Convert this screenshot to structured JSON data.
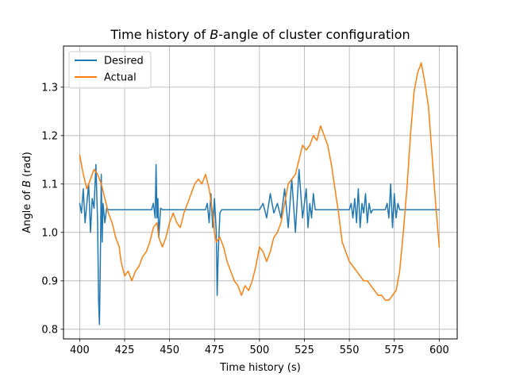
{
  "chart_data": {
    "type": "line",
    "title_prefix": "Time history of ",
    "title_symbol": "B",
    "title_suffix": "-angle of cluster configuration",
    "xlabel": "Time history (s)",
    "ylabel_prefix": "Angle of ",
    "ylabel_symbol": "B",
    "ylabel_suffix": " (rad)",
    "xlim": [
      391,
      610
    ],
    "ylim": [
      0.78,
      1.385
    ],
    "xticks": [
      400,
      425,
      450,
      475,
      500,
      525,
      550,
      575,
      600
    ],
    "yticks": [
      0.8,
      0.9,
      1.0,
      1.1,
      1.2,
      1.3
    ],
    "ytick_labels": [
      "0.8",
      "0.9",
      "1.0",
      "1.1",
      "1.2",
      "1.3"
    ],
    "grid": true,
    "legend_position": "upper-left",
    "series": [
      {
        "name": "Desired",
        "color": "#1f77b4",
        "constant_value": 1.047,
        "x": [
          400,
          401,
          402,
          403,
          404,
          405,
          406,
          407,
          408,
          409,
          410,
          410.5,
          411,
          411.5,
          412,
          412.5,
          413,
          414,
          415,
          416,
          440,
          441,
          442,
          442.5,
          443,
          443.5,
          444,
          445,
          446,
          470,
          471,
          472,
          473,
          474,
          475,
          476,
          476.5,
          477,
          478,
          479,
          500,
          502,
          504,
          506,
          508,
          510,
          512,
          514,
          516,
          518,
          520,
          522,
          524,
          526,
          527,
          528,
          529,
          530,
          531,
          550,
          551,
          552,
          553,
          554,
          555,
          556,
          557,
          558,
          559,
          560,
          561,
          562,
          563,
          570,
          571,
          572,
          573,
          574,
          575,
          576,
          577,
          578,
          600
        ],
        "y": [
          1.06,
          1.04,
          1.09,
          1.02,
          1.06,
          1.1,
          1.0,
          1.07,
          1.05,
          1.14,
          1.02,
          0.86,
          0.81,
          0.94,
          1.12,
          0.98,
          1.06,
          1.02,
          1.05,
          1.047,
          1.047,
          1.06,
          1.03,
          1.14,
          1.03,
          1.07,
          0.99,
          1.05,
          1.047,
          1.047,
          1.06,
          1.02,
          1.08,
          1.01,
          1.07,
          1.0,
          0.87,
          0.95,
          1.04,
          1.047,
          1.047,
          1.06,
          1.03,
          1.08,
          1.04,
          1.06,
          1.03,
          1.09,
          1.01,
          1.11,
          1.0,
          1.13,
          1.03,
          1.09,
          1.01,
          1.06,
          1.03,
          1.08,
          1.047,
          1.047,
          1.06,
          1.03,
          1.07,
          1.02,
          1.09,
          1.01,
          1.06,
          1.04,
          1.08,
          1.02,
          1.06,
          1.04,
          1.047,
          1.047,
          1.06,
          1.03,
          1.1,
          1.01,
          1.08,
          1.03,
          1.06,
          1.047,
          1.047
        ]
      },
      {
        "name": "Actual",
        "color": "#ff7f0e",
        "x": [
          400,
          402,
          404,
          406,
          408,
          410,
          412,
          414,
          416,
          418,
          420,
          422,
          423,
          425,
          427,
          429,
          431,
          433,
          435,
          437,
          439,
          441,
          443,
          444,
          446,
          448,
          450,
          452,
          454,
          456,
          458,
          460,
          462,
          464,
          466,
          468,
          470,
          472,
          474,
          475,
          476,
          478,
          480,
          482,
          484,
          486,
          488,
          489,
          490,
          492,
          494,
          496,
          498,
          500,
          502,
          504,
          506,
          508,
          510,
          512,
          514,
          516,
          518,
          520,
          522,
          524,
          526,
          528,
          530,
          532,
          534,
          536,
          538,
          540,
          542,
          544,
          546,
          548,
          550,
          552,
          554,
          556,
          558,
          560,
          562,
          564,
          566,
          568,
          570,
          572,
          574,
          576,
          578,
          580,
          582,
          584,
          586,
          588,
          590,
          592,
          594,
          596,
          598,
          600
        ],
        "y": [
          1.16,
          1.12,
          1.09,
          1.11,
          1.13,
          1.12,
          1.1,
          1.07,
          1.04,
          1.02,
          0.99,
          0.97,
          0.94,
          0.91,
          0.92,
          0.9,
          0.92,
          0.93,
          0.95,
          0.96,
          0.98,
          1.01,
          1.02,
          0.99,
          0.97,
          0.99,
          1.02,
          1.04,
          1.02,
          1.01,
          1.04,
          1.06,
          1.08,
          1.1,
          1.11,
          1.1,
          1.12,
          1.09,
          1.04,
          1.0,
          0.98,
          0.99,
          0.97,
          0.94,
          0.92,
          0.9,
          0.89,
          0.88,
          0.87,
          0.89,
          0.88,
          0.9,
          0.93,
          0.97,
          0.96,
          0.94,
          0.96,
          0.99,
          1.0,
          1.02,
          1.06,
          1.1,
          1.11,
          1.12,
          1.15,
          1.18,
          1.17,
          1.18,
          1.2,
          1.19,
          1.22,
          1.2,
          1.18,
          1.14,
          1.09,
          1.04,
          0.98,
          0.96,
          0.94,
          0.93,
          0.92,
          0.91,
          0.9,
          0.9,
          0.89,
          0.88,
          0.87,
          0.87,
          0.86,
          0.86,
          0.87,
          0.88,
          0.92,
          1.0,
          1.09,
          1.2,
          1.29,
          1.33,
          1.35,
          1.31,
          1.26,
          1.16,
          1.06,
          0.97
        ]
      }
    ]
  }
}
